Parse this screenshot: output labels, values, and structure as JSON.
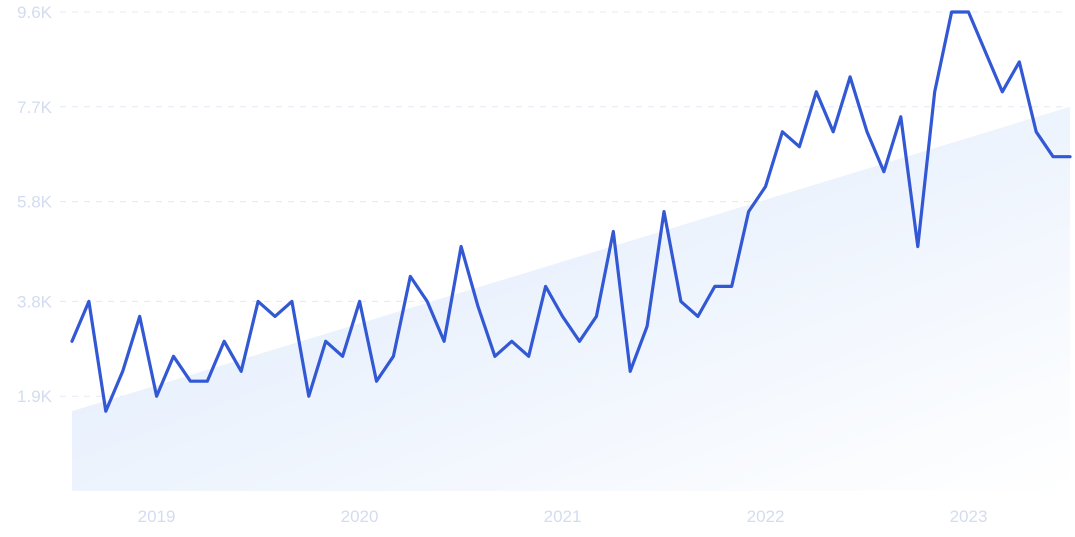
{
  "chart_data": {
    "type": "line",
    "title": "",
    "xlabel": "",
    "ylabel": "",
    "x_start": "2018-10",
    "x_end": "2023-09",
    "x_tick_labels": [
      {
        "label": "2019",
        "date": "2019-03"
      },
      {
        "label": "2020",
        "date": "2020-03"
      },
      {
        "label": "2021",
        "date": "2021-03"
      },
      {
        "label": "2022",
        "date": "2022-03"
      },
      {
        "label": "2023",
        "date": "2023-03"
      }
    ],
    "y_ticks": [
      {
        "label": "1.9K",
        "value": 1900
      },
      {
        "label": "3.8K",
        "value": 3800
      },
      {
        "label": "5.8K",
        "value": 5800
      },
      {
        "label": "7.7K",
        "value": 7700
      },
      {
        "label": "9.6K",
        "value": 9600
      }
    ],
    "ylim": [
      0,
      9600
    ],
    "grid": true,
    "legend": "none",
    "colors": {
      "line": "#3358d4",
      "trend_fill_start": "#dbe8fb",
      "trend_fill_end": "#ffffff",
      "tick_text": "#d3dcf0",
      "grid": "#e3e8f3"
    },
    "trend": {
      "start_value": 1600,
      "end_value": 7700
    },
    "series": [
      {
        "x": [
          "2018-10",
          "2018-11",
          "2018-12",
          "2019-01",
          "2019-02",
          "2019-03",
          "2019-04",
          "2019-05",
          "2019-06",
          "2019-07",
          "2019-08",
          "2019-09",
          "2019-10",
          "2019-11",
          "2019-12",
          "2020-01",
          "2020-02",
          "2020-03",
          "2020-04",
          "2020-05",
          "2020-06",
          "2020-07",
          "2020-08",
          "2020-09",
          "2020-10",
          "2020-11",
          "2020-12",
          "2021-01",
          "2021-02",
          "2021-03",
          "2021-04",
          "2021-05",
          "2021-06",
          "2021-07",
          "2021-08",
          "2021-09",
          "2021-10",
          "2021-11",
          "2021-12",
          "2022-01",
          "2022-02",
          "2022-03",
          "2022-04",
          "2022-05",
          "2022-06",
          "2022-07",
          "2022-08",
          "2022-09",
          "2022-10",
          "2022-11",
          "2022-12",
          "2023-01",
          "2023-02",
          "2023-03",
          "2023-04",
          "2023-05",
          "2023-06",
          "2023-07",
          "2023-08",
          "2023-09"
        ],
        "values": [
          3000,
          3800,
          1600,
          2400,
          3500,
          1900,
          2700,
          2200,
          2200,
          3000,
          2400,
          3800,
          3500,
          3800,
          1900,
          3000,
          2700,
          3800,
          2200,
          2700,
          4300,
          3800,
          3000,
          4900,
          3700,
          2700,
          3000,
          2700,
          4100,
          3500,
          3000,
          3500,
          5200,
          2400,
          3300,
          5600,
          3800,
          3500,
          4100,
          4100,
          5600,
          6100,
          7200,
          6900,
          8000,
          7200,
          8300,
          7200,
          6400,
          7500,
          4900,
          8000,
          9600,
          9600,
          8800,
          8000,
          8600,
          7200,
          6700,
          6700
        ]
      }
    ]
  }
}
